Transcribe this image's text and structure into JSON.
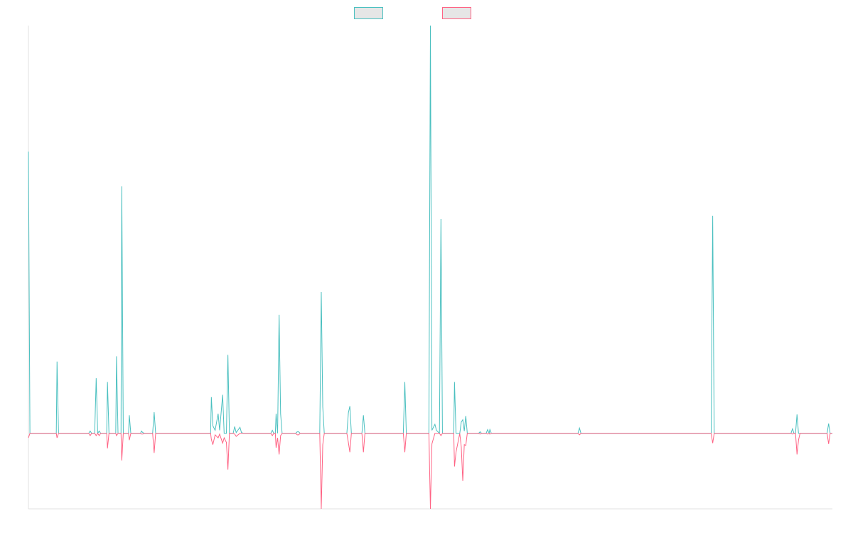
{
  "chart_data": {
    "type": "line",
    "title": "",
    "xlabel": "",
    "ylabel": "",
    "grid": false,
    "legend_position": "top-center",
    "ylim": [
      -100,
      540
    ],
    "series": [
      {
        "color": "#4bc0c0",
        "fill": "#e6e6e6",
        "points": [
          [
            0,
            373
          ],
          [
            2,
            0
          ],
          [
            12,
            0
          ],
          [
            37,
            0
          ],
          [
            38,
            95
          ],
          [
            40,
            0
          ],
          [
            80,
            0
          ],
          [
            82,
            3
          ],
          [
            84,
            0
          ],
          [
            88,
            0
          ],
          [
            90,
            73
          ],
          [
            92,
            0
          ],
          [
            94,
            3
          ],
          [
            96,
            0
          ],
          [
            104,
            0
          ],
          [
            105,
            68
          ],
          [
            107,
            0
          ],
          [
            116,
            0
          ],
          [
            117,
            102
          ],
          [
            119,
            0
          ],
          [
            123,
            0
          ],
          [
            124,
            327
          ],
          [
            126,
            0
          ],
          [
            133,
            0
          ],
          [
            134,
            24
          ],
          [
            136,
            0
          ],
          [
            149,
            0
          ],
          [
            150,
            3
          ],
          [
            152,
            1
          ],
          [
            154,
            0
          ],
          [
            165,
            0
          ],
          [
            167,
            28
          ],
          [
            169,
            0
          ],
          [
            242,
            0
          ],
          [
            243,
            48
          ],
          [
            245,
            10
          ],
          [
            248,
            4
          ],
          [
            252,
            26
          ],
          [
            254,
            4
          ],
          [
            258,
            51
          ],
          [
            260,
            0
          ],
          [
            263,
            0
          ],
          [
            265,
            104
          ],
          [
            267,
            0
          ],
          [
            272,
            0
          ],
          [
            274,
            9
          ],
          [
            276,
            1
          ],
          [
            281,
            8
          ],
          [
            283,
            1
          ],
          [
            286,
            0
          ],
          [
            322,
            0
          ],
          [
            324,
            4
          ],
          [
            326,
            0
          ],
          [
            328,
            0
          ],
          [
            329,
            26
          ],
          [
            331,
            0
          ],
          [
            333,
            157
          ],
          [
            335,
            26
          ],
          [
            337,
            0
          ],
          [
            355,
            0
          ],
          [
            357,
            2
          ],
          [
            359,
            2
          ],
          [
            361,
            0
          ],
          [
            387,
            0
          ],
          [
            389,
            187
          ],
          [
            391,
            35
          ],
          [
            393,
            0
          ],
          [
            423,
            0
          ],
          [
            425,
            27
          ],
          [
            427,
            36
          ],
          [
            429,
            0
          ],
          [
            443,
            0
          ],
          [
            445,
            24
          ],
          [
            447,
            0
          ],
          [
            498,
            0
          ],
          [
            500,
            68
          ],
          [
            502,
            0
          ],
          [
            532,
            0
          ],
          [
            534,
            540
          ],
          [
            536,
            4
          ],
          [
            540,
            12
          ],
          [
            542,
            4
          ],
          [
            546,
            0
          ],
          [
            548,
            284
          ],
          [
            550,
            0
          ],
          [
            565,
            0
          ],
          [
            566,
            68
          ],
          [
            568,
            0
          ],
          [
            573,
            0
          ],
          [
            575,
            15
          ],
          [
            577,
            18
          ],
          [
            579,
            3
          ],
          [
            581,
            23
          ],
          [
            583,
            0
          ],
          [
            598,
            0
          ],
          [
            600,
            2
          ],
          [
            602,
            0
          ],
          [
            608,
            0
          ],
          [
            610,
            5
          ],
          [
            612,
            0
          ],
          [
            613,
            5
          ],
          [
            615,
            0
          ],
          [
            730,
            0
          ],
          [
            732,
            7
          ],
          [
            734,
            0
          ],
          [
            907,
            0
          ],
          [
            909,
            288
          ],
          [
            911,
            0
          ],
          [
            1013,
            0
          ],
          [
            1015,
            6
          ],
          [
            1017,
            0
          ],
          [
            1019,
            0
          ],
          [
            1021,
            25
          ],
          [
            1023,
            0
          ],
          [
            1061,
            0
          ],
          [
            1063,
            13
          ],
          [
            1065,
            0
          ],
          [
            1068,
            0
          ]
        ]
      },
      {
        "color": "#ff6384",
        "fill": "#e6e6e6",
        "points": [
          [
            0,
            -6
          ],
          [
            2,
            0
          ],
          [
            12,
            0
          ],
          [
            37,
            0
          ],
          [
            38,
            -6
          ],
          [
            40,
            0
          ],
          [
            80,
            0
          ],
          [
            82,
            -3
          ],
          [
            84,
            0
          ],
          [
            88,
            0
          ],
          [
            90,
            -3
          ],
          [
            92,
            0
          ],
          [
            94,
            -3
          ],
          [
            96,
            0
          ],
          [
            104,
            0
          ],
          [
            105,
            -20
          ],
          [
            107,
            0
          ],
          [
            116,
            0
          ],
          [
            117,
            -3
          ],
          [
            119,
            0
          ],
          [
            123,
            0
          ],
          [
            124,
            -36
          ],
          [
            126,
            0
          ],
          [
            133,
            0
          ],
          [
            134,
            -9
          ],
          [
            136,
            0
          ],
          [
            149,
            0
          ],
          [
            150,
            -1
          ],
          [
            152,
            -1
          ],
          [
            154,
            0
          ],
          [
            165,
            0
          ],
          [
            167,
            -26
          ],
          [
            169,
            0
          ],
          [
            242,
            0
          ],
          [
            243,
            -8
          ],
          [
            245,
            -15
          ],
          [
            248,
            -2
          ],
          [
            252,
            -6
          ],
          [
            254,
            -1
          ],
          [
            258,
            -13
          ],
          [
            260,
            -6
          ],
          [
            263,
            -12
          ],
          [
            265,
            -48
          ],
          [
            267,
            0
          ],
          [
            272,
            0
          ],
          [
            274,
            -1
          ],
          [
            276,
            -4
          ],
          [
            281,
            0
          ],
          [
            322,
            0
          ],
          [
            324,
            -3
          ],
          [
            326,
            0
          ],
          [
            328,
            0
          ],
          [
            329,
            -19
          ],
          [
            331,
            -6
          ],
          [
            333,
            -28
          ],
          [
            335,
            -3
          ],
          [
            337,
            0
          ],
          [
            355,
            0
          ],
          [
            357,
            -2
          ],
          [
            359,
            -2
          ],
          [
            361,
            0
          ],
          [
            387,
            0
          ],
          [
            389,
            -100
          ],
          [
            391,
            -15
          ],
          [
            393,
            0
          ],
          [
            423,
            0
          ],
          [
            425,
            -12
          ],
          [
            427,
            -25
          ],
          [
            429,
            0
          ],
          [
            443,
            0
          ],
          [
            445,
            -25
          ],
          [
            447,
            0
          ],
          [
            498,
            0
          ],
          [
            500,
            -25
          ],
          [
            502,
            0
          ],
          [
            532,
            0
          ],
          [
            534,
            -100
          ],
          [
            536,
            -14
          ],
          [
            540,
            0
          ],
          [
            546,
            0
          ],
          [
            548,
            -3
          ],
          [
            550,
            0
          ],
          [
            565,
            0
          ],
          [
            566,
            -44
          ],
          [
            568,
            -25
          ],
          [
            573,
            0
          ],
          [
            575,
            -18
          ],
          [
            577,
            -63
          ],
          [
            579,
            -15
          ],
          [
            581,
            -16
          ],
          [
            583,
            0
          ],
          [
            598,
            0
          ],
          [
            600,
            -1
          ],
          [
            602,
            0
          ],
          [
            608,
            0
          ],
          [
            610,
            -1
          ],
          [
            612,
            0
          ],
          [
            613,
            -1
          ],
          [
            615,
            0
          ],
          [
            730,
            0
          ],
          [
            732,
            -2
          ],
          [
            734,
            0
          ],
          [
            907,
            0
          ],
          [
            909,
            -13
          ],
          [
            911,
            0
          ],
          [
            1013,
            0
          ],
          [
            1015,
            -1
          ],
          [
            1017,
            0
          ],
          [
            1019,
            0
          ],
          [
            1021,
            -28
          ],
          [
            1023,
            -9
          ],
          [
            1025,
            0
          ],
          [
            1061,
            0
          ],
          [
            1063,
            -14
          ],
          [
            1065,
            0
          ],
          [
            1068,
            0
          ]
        ]
      }
    ],
    "xlim": [
      0,
      1068
    ],
    "axis_color": "#e0e0e0"
  }
}
